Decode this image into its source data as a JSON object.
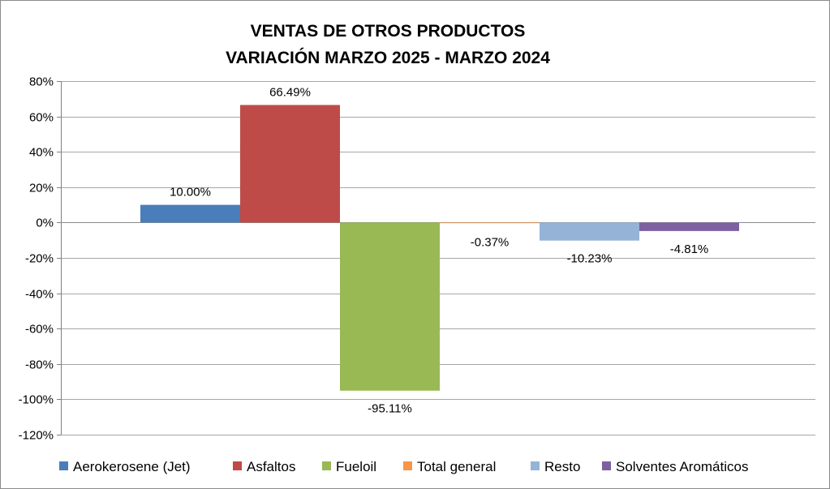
{
  "chart_data": {
    "type": "bar",
    "title_lines": [
      "VENTAS DE OTROS PRODUCTOS",
      "VARIACIÓN MARZO 2025 - MARZO 2024"
    ],
    "xlabel": "",
    "ylabel": "",
    "ylim": [
      -120,
      80
    ],
    "yticks": [
      80,
      60,
      40,
      20,
      0,
      -20,
      -40,
      -60,
      -80,
      -100,
      -120
    ],
    "ytick_labels": [
      "80%",
      "60%",
      "40%",
      "20%",
      "0%",
      "-20%",
      "-40%",
      "-60%",
      "-80%",
      "-100%",
      "-120%"
    ],
    "grid": true,
    "legend_position": "bottom",
    "series": [
      {
        "name": "Aerokerosene (Jet)",
        "value": 10.0,
        "label": "10.00%",
        "color": "#4a7ebb"
      },
      {
        "name": "Asfaltos",
        "value": 66.49,
        "label": "66.49%",
        "color": "#be4b48"
      },
      {
        "name": "Fueloil",
        "value": -95.11,
        "label": "-95.11%",
        "color": "#98b954"
      },
      {
        "name": "Total general",
        "value": -0.37,
        "label": "-0.37%",
        "color": "#f79646"
      },
      {
        "name": "Resto",
        "value": -10.23,
        "label": "-10.23%",
        "color": "#95b3d7"
      },
      {
        "name": "Solventes Aromáticos",
        "value": -4.81,
        "label": "-4.81%",
        "color": "#7d60a0"
      }
    ]
  }
}
